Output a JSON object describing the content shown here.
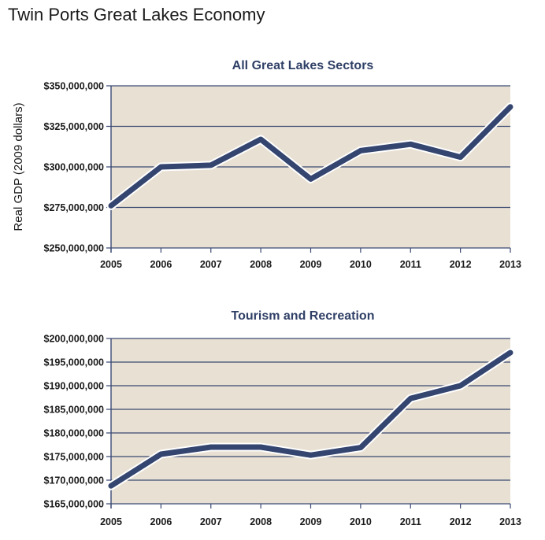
{
  "page": {
    "title": "Twin Ports Great Lakes Economy"
  },
  "colors": {
    "plot_bg": "#e8e0d2",
    "grid": "#3a4a73",
    "line": "#34456f",
    "halo": "#ffffff",
    "title": "#2f3f66"
  },
  "chart_data": [
    {
      "type": "line",
      "title": "All Great Lakes Sectors",
      "xlabel": "",
      "ylabel": "Real GDP (2009 dollars)",
      "categories": [
        "2005",
        "2006",
        "2007",
        "2008",
        "2009",
        "2010",
        "2011",
        "2012",
        "2013"
      ],
      "series": [
        {
          "values": [
            276000000,
            300000000,
            301000000,
            317000000,
            292500000,
            310000000,
            314000000,
            306000000,
            337000000
          ]
        }
      ],
      "ylim": [
        250000000,
        350000000
      ],
      "yticks": [
        250000000,
        275000000,
        300000000,
        325000000,
        350000000
      ],
      "ytick_labels": [
        "$250,000,000",
        "$275,000,000",
        "$300,000,000",
        "$325,000,000",
        "$350,000,000"
      ],
      "grid": true
    },
    {
      "type": "line",
      "title": "Tourism and Recreation",
      "xlabel": "",
      "ylabel": "",
      "categories": [
        "2005",
        "2006",
        "2007",
        "2008",
        "2009",
        "2010",
        "2011",
        "2012",
        "2013"
      ],
      "series": [
        {
          "values": [
            168800000,
            175500000,
            177000000,
            177000000,
            175300000,
            176900000,
            187300000,
            190000000,
            197000000
          ]
        }
      ],
      "ylim": [
        165000000,
        200000000
      ],
      "yticks": [
        165000000,
        170000000,
        175000000,
        180000000,
        185000000,
        190000000,
        195000000,
        200000000
      ],
      "ytick_labels": [
        "$165,000,000",
        "$170,000,000",
        "$175,000,000",
        "$180,000,000",
        "$185,000,000",
        "$190,000,000",
        "$195,000,000",
        "$200,000,000"
      ],
      "grid": true
    }
  ]
}
